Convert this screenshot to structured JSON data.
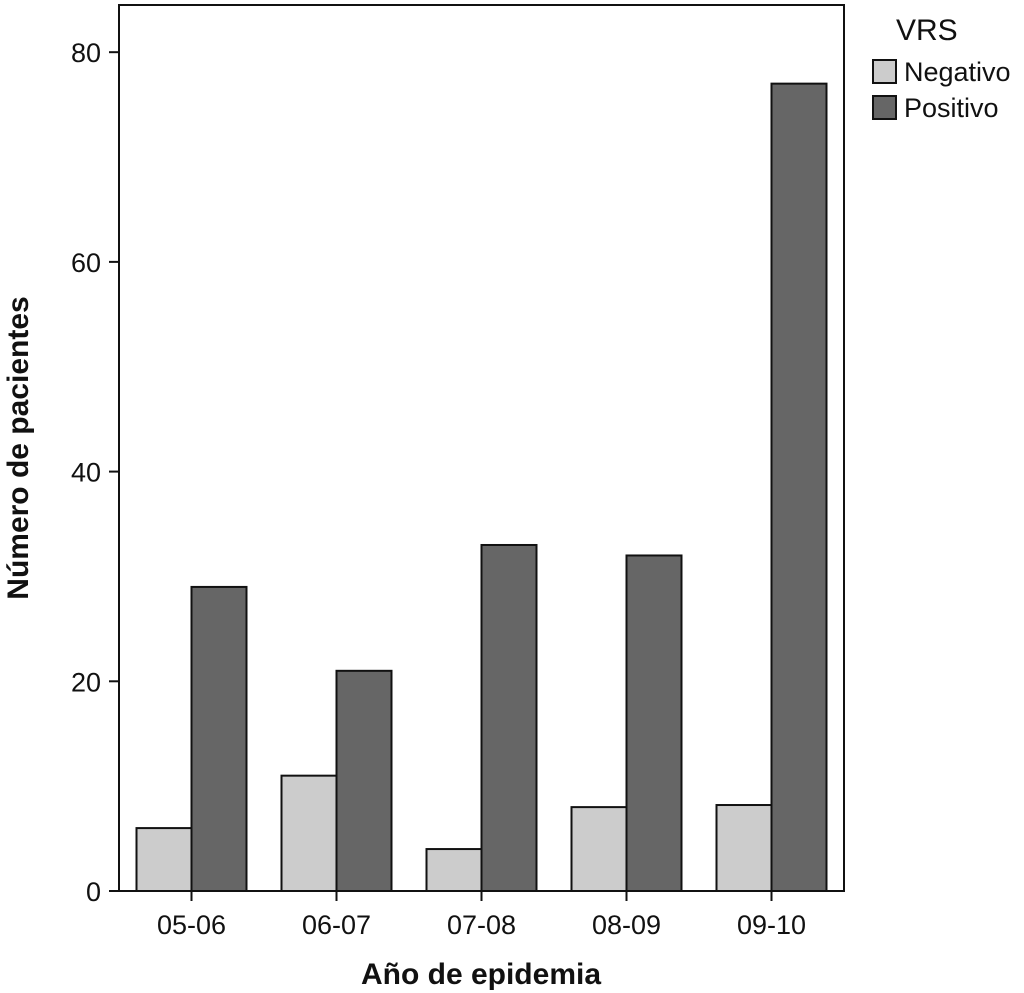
{
  "chart_data": {
    "type": "bar",
    "title": "",
    "xlabel": "Año de epidemia",
    "ylabel": "Número de pacientes",
    "categories": [
      "05-06",
      "06-07",
      "07-08",
      "08-09",
      "09-10"
    ],
    "series": [
      {
        "name": "Negativo",
        "values": [
          6,
          11,
          4,
          8,
          8.2
        ],
        "color": "#cccccc"
      },
      {
        "name": "Positivo",
        "values": [
          29,
          21,
          33,
          32,
          77
        ],
        "color": "#666666"
      }
    ],
    "ylim": [
      0,
      84.5
    ],
    "yticks": [
      0,
      20,
      40,
      60,
      80
    ],
    "grid": false,
    "legend": {
      "title": "VRS",
      "placement": "right"
    }
  }
}
